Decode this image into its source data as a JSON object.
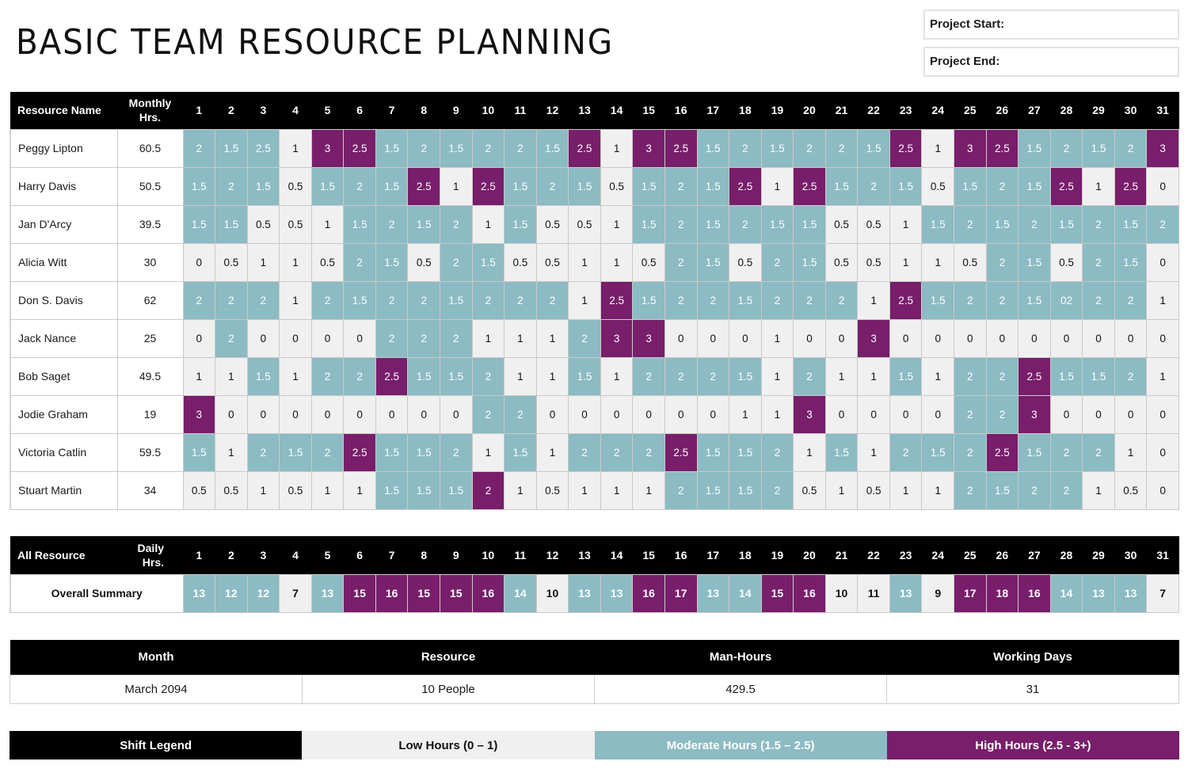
{
  "title": "BASIC TEAM RESOURCE PLANNING",
  "project": {
    "start_label": "Project Start:",
    "start_value": "",
    "end_label": "Project End:",
    "end_value": ""
  },
  "colors": {
    "low": "#f0f0f0",
    "moderate": "#8cbbc3",
    "high": "#781e6b",
    "header": "#000000"
  },
  "grid": {
    "header": {
      "name": "Resource Name",
      "monthly": "Monthly Hrs.",
      "days": [
        "1",
        "2",
        "3",
        "4",
        "5",
        "6",
        "7",
        "8",
        "9",
        "10",
        "11",
        "12",
        "13",
        "14",
        "15",
        "16",
        "17",
        "18",
        "19",
        "20",
        "21",
        "22",
        "23",
        "24",
        "25",
        "26",
        "27",
        "28",
        "29",
        "30",
        "31"
      ]
    },
    "rows": [
      {
        "name": "Peggy Lipton",
        "monthly": "60.5",
        "cells": [
          "2m",
          "1.5m",
          "2.5m",
          "1l",
          "3h",
          "2.5h",
          "1.5m",
          "2m",
          "1.5m",
          "2m",
          "2m",
          "1.5m",
          "2.5h",
          "1l",
          "3h",
          "2.5h",
          "1.5m",
          "2m",
          "1.5m",
          "2m",
          "2m",
          "1.5m",
          "2.5h",
          "1l",
          "3h",
          "2.5h",
          "1.5m",
          "2m",
          "1.5m",
          "2m",
          "3h"
        ]
      },
      {
        "name": "Harry Davis",
        "monthly": "50.5",
        "cells": [
          "1.5m",
          "2m",
          "1.5m",
          "0.5l",
          "1.5m",
          "2m",
          "1.5m",
          "2.5h",
          "1l",
          "2.5h",
          "1.5m",
          "2m",
          "1.5m",
          "0.5l",
          "1.5m",
          "2m",
          "1.5m",
          "2.5h",
          "1l",
          "2.5h",
          "1.5m",
          "2m",
          "1.5m",
          "0.5l",
          "1.5m",
          "2m",
          "1.5m",
          "2.5h",
          "1l",
          "2.5h",
          "0l"
        ]
      },
      {
        "name": "Jan D'Arcy",
        "monthly": "39.5",
        "cells": [
          "1.5m",
          "1.5m",
          "0.5l",
          "0.5l",
          "1l",
          "1.5m",
          "2m",
          "1.5m",
          "2m",
          "1l",
          "1.5m",
          "0.5l",
          "0.5l",
          "1l",
          "1.5m",
          "2m",
          "1.5m",
          "2m",
          "1.5m",
          "1.5m",
          "0.5l",
          "0.5l",
          "1l",
          "1.5m",
          "2m",
          "1.5m",
          "2m",
          "1.5m",
          "2m",
          "1.5m",
          "2m"
        ]
      },
      {
        "name": "Alicia Witt",
        "monthly": "30",
        "cells": [
          "0l",
          "0.5l",
          "1l",
          "1l",
          "0.5l",
          "2m",
          "1.5m",
          "0.5l",
          "2m",
          "1.5m",
          "0.5l",
          "0.5l",
          "1l",
          "1l",
          "0.5l",
          "2m",
          "1.5m",
          "0.5l",
          "2m",
          "1.5m",
          "0.5l",
          "0.5l",
          "1l",
          "1l",
          "0.5l",
          "2m",
          "1.5m",
          "0.5l",
          "2m",
          "1.5m",
          "0l"
        ]
      },
      {
        "name": "Don S. Davis",
        "monthly": "62",
        "cells": [
          "2m",
          "2m",
          "2m",
          "1l",
          "2m",
          "1.5m",
          "2m",
          "2m",
          "1.5m",
          "2m",
          "2m",
          "2m",
          "1l",
          "2.5h",
          "1.5m",
          "2m",
          "2m",
          "1.5m",
          "2m",
          "2m",
          "2m",
          "1l",
          "2.5h",
          "1.5m",
          "2m",
          "2m",
          "1.5m",
          "02m",
          "2m",
          "2m",
          "1l"
        ]
      },
      {
        "name": "Jack Nance",
        "monthly": "25",
        "cells": [
          "0l",
          "2m",
          "0l",
          "0l",
          "0l",
          "0l",
          "2m",
          "2m",
          "2m",
          "1l",
          "1l",
          "1l",
          "2m",
          "3h",
          "3h",
          "0l",
          "0l",
          "0l",
          "1l",
          "0l",
          "0l",
          "3h",
          "0l",
          "0l",
          "0l",
          "0l",
          "0l",
          "0l",
          "0l",
          "0l",
          "0l"
        ]
      },
      {
        "name": "Bob Saget",
        "monthly": "49.5",
        "cells": [
          "1l",
          "1l",
          "1.5m",
          "1l",
          "2m",
          "2m",
          "2.5h",
          "1.5m",
          "1.5m",
          "2m",
          "1l",
          "1l",
          "1.5m",
          "1l",
          "2m",
          "2m",
          "2m",
          "1.5m",
          "1l",
          "2m",
          "1l",
          "1l",
          "1.5m",
          "1l",
          "2m",
          "2m",
          "2.5h",
          "1.5m",
          "1.5m",
          "2m",
          "1l"
        ]
      },
      {
        "name": "Jodie Graham",
        "monthly": "19",
        "cells": [
          "3h",
          "0l",
          "0l",
          "0l",
          "0l",
          "0l",
          "0l",
          "0l",
          "0l",
          "2m",
          "2m",
          "0l",
          "0l",
          "0l",
          "0l",
          "0l",
          "0l",
          "1l",
          "1l",
          "3h",
          "0l",
          "0l",
          "0l",
          "0l",
          "2m",
          "2m",
          "3h",
          "0l",
          "0l",
          "0l",
          "0l"
        ]
      },
      {
        "name": "Victoria Catlin",
        "monthly": "59.5",
        "cells": [
          "1.5m",
          "1l",
          "2m",
          "1.5m",
          "2m",
          "2.5h",
          "1.5m",
          "1.5m",
          "2m",
          "1l",
          "1.5m",
          "1l",
          "2m",
          "2m",
          "2m",
          "2.5h",
          "1.5m",
          "1.5m",
          "2m",
          "1l",
          "1.5m",
          "1l",
          "2m",
          "1.5m",
          "2m",
          "2.5h",
          "1.5m",
          "2m",
          "2m",
          "1l",
          "0l"
        ]
      },
      {
        "name": "Stuart Martin",
        "monthly": "34",
        "cells": [
          "0.5l",
          "0.5l",
          "1l",
          "0.5l",
          "1l",
          "1l",
          "1.5m",
          "1.5m",
          "1.5m",
          "2h",
          "1l",
          "0.5l",
          "1l",
          "1l",
          "1l",
          "2m",
          "1.5m",
          "1.5m",
          "2m",
          "0.5l",
          "1l",
          "0.5l",
          "1l",
          "1l",
          "2m",
          "1.5m",
          "2m",
          "2m",
          "1l",
          "0.5l",
          "0l"
        ]
      }
    ]
  },
  "summary": {
    "header": {
      "name": "All Resource",
      "daily": "Daily Hrs."
    },
    "label": "Overall Summary",
    "cells": [
      "13m",
      "12m",
      "12m",
      "7l",
      "13m",
      "15h",
      "16h",
      "15h",
      "15h",
      "16h",
      "14m",
      "10l",
      "13m",
      "13m",
      "16h",
      "17h",
      "13m",
      "14m",
      "15h",
      "16h",
      "10l",
      "11l",
      "13m",
      "9l",
      "17h",
      "18h",
      "16h",
      "14m",
      "13m",
      "13m",
      "7l"
    ]
  },
  "stats": {
    "headers": [
      "Month",
      "Resource",
      "Man-Hours",
      "Working Days"
    ],
    "values": [
      "March 2094",
      "10 People",
      "429.5",
      "31"
    ]
  },
  "legend": {
    "title": "Shift Legend",
    "low": "Low Hours (0 – 1)",
    "moderate": "Moderate Hours (1.5 – 2.5)",
    "high": "High Hours (2.5 - 3+)"
  }
}
